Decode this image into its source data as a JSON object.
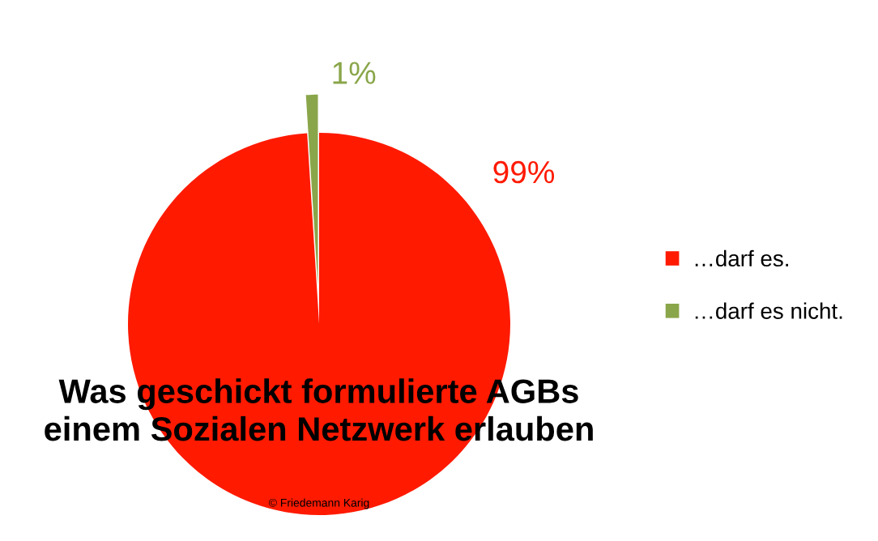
{
  "chart_data": {
    "type": "pie",
    "title": "Was geschickt formulierte AGBs\neinem Sozialen Netzwerk erlauben",
    "categories": [
      "…darf es.",
      "…darf es nicht."
    ],
    "values": [
      99,
      1
    ],
    "value_labels": [
      "99%",
      "1%"
    ],
    "colors": [
      "#ff1a00",
      "#8aa64a"
    ],
    "legend": "right",
    "annotations": [
      "© Friedemann Karig"
    ]
  }
}
